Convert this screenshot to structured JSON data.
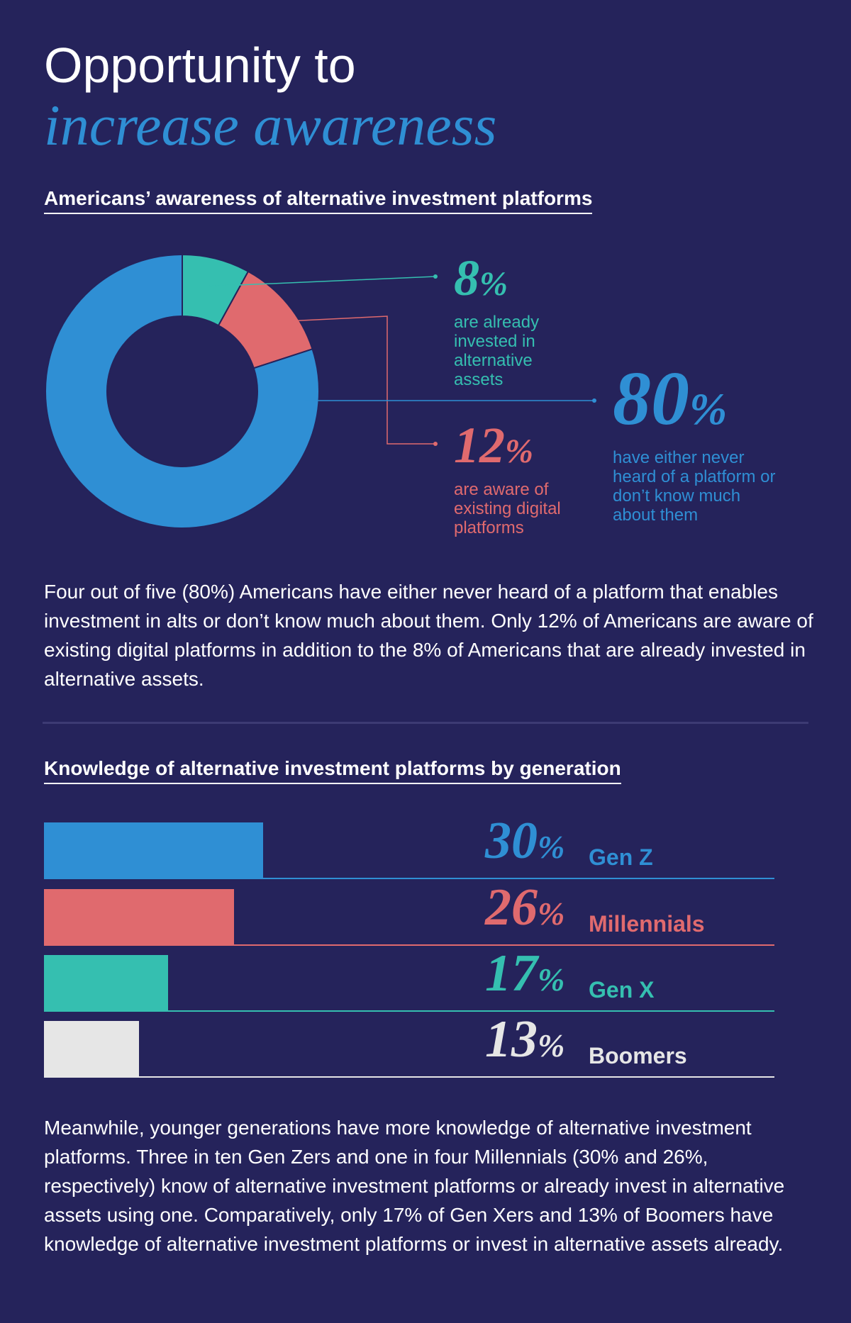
{
  "header": {
    "title_line1": "Opportunity to",
    "title_line2": "increase awareness"
  },
  "colors": {
    "background": "#25235b",
    "blue": "#2f8fd4",
    "coral": "#e06a6e",
    "teal": "#35bfb0",
    "light_gray": "#e6e6e6"
  },
  "section1": {
    "heading": "Americans’ awareness of alternative investment platforms",
    "paragraph": "Four out of five (80%) Americans have either never heard of a platform that enables investment in alts or don’t know much about them. Only 12% of Americans are aware of existing digital platforms in addition to the 8% of Americans that are already invested in alternative assets."
  },
  "section2": {
    "heading": "Knowledge of alternative investment platforms by generation",
    "paragraph": "Meanwhile, younger generations have more knowledge of alternative investment platforms. Three in ten Gen Zers and one in four Millennials (30% and 26%, respectively) know of alternative investment platforms or already invest in alternative assets using one. Comparatively, only 17% of Gen Xers and 13% of Boomers have knowledge of alternative investment platforms or invest in alternative assets already."
  },
  "chart_data": [
    {
      "type": "pie",
      "donut": true,
      "title": "Americans’ awareness of alternative investment platforms",
      "slices": [
        {
          "value": 8,
          "label": "8%",
          "description": "are already invested in alternative assets",
          "color": "#35bfb0"
        },
        {
          "value": 12,
          "label": "12%",
          "description": "are aware of existing digital platforms",
          "color": "#e06a6e"
        },
        {
          "value": 80,
          "label": "80%",
          "description": "have either never heard of a platform or don’t know much about them",
          "color": "#2f8fd4"
        }
      ]
    },
    {
      "type": "bar",
      "orientation": "horizontal",
      "title": "Knowledge of alternative investment platforms by generation",
      "categories": [
        "Gen Z",
        "Millennials",
        "Gen X",
        "Boomers"
      ],
      "values": [
        30,
        26,
        17,
        13
      ],
      "labels": [
        "30",
        "26",
        "17",
        "13"
      ],
      "unit": "%",
      "colors": [
        "#2f8fd4",
        "#e06a6e",
        "#35bfb0",
        "#e6e6e6"
      ]
    }
  ]
}
